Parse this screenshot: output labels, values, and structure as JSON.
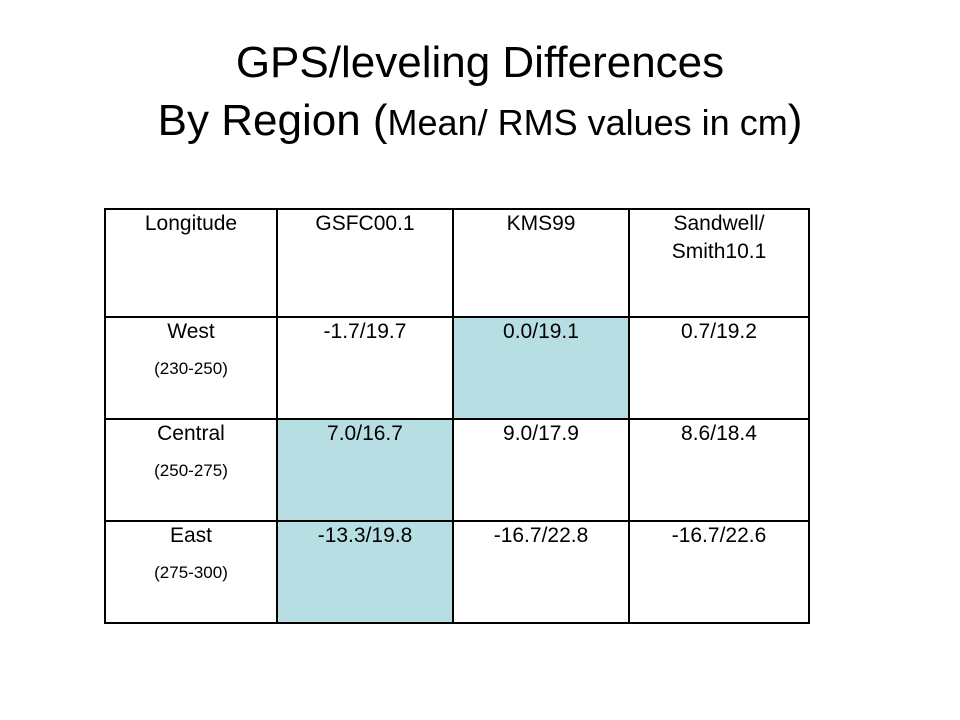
{
  "title": {
    "line1": "GPS/leveling Differences",
    "line2_main": "By Region (",
    "line2_small": "Mean/ RMS values in cm",
    "line2_end": ")"
  },
  "table": {
    "headers": [
      "Longitude",
      "GSFC00.1",
      "KMS99",
      "Sandwell/ Smith10.1"
    ],
    "rows": [
      {
        "region": "West",
        "range": "(230-250)",
        "gsfc": "-1.7/19.7",
        "kms": "0.0/19.1",
        "sandwell": "0.7/19.2"
      },
      {
        "region": "Central",
        "range": "(250-275)",
        "gsfc": "7.0/16.7",
        "kms": "9.0/17.9",
        "sandwell": "8.6/18.4"
      },
      {
        "region": "East",
        "range": "(275-300)",
        "gsfc": "-13.3/19.8",
        "kms": "-16.7/22.8",
        "sandwell": "-16.7/22.6"
      }
    ]
  },
  "colors": {
    "highlight": "#b7dfe3",
    "border": "#000000",
    "background": "#ffffff"
  }
}
